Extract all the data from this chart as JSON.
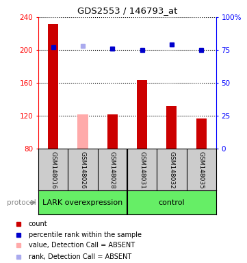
{
  "title": "GDS2553 / 146793_at",
  "samples": [
    "GSM148016",
    "GSM148026",
    "GSM148028",
    "GSM148031",
    "GSM148032",
    "GSM148035"
  ],
  "bar_values": [
    232,
    122,
    122,
    163,
    132,
    117
  ],
  "bar_colors": [
    "#cc0000",
    "#ffaaaa",
    "#cc0000",
    "#cc0000",
    "#cc0000",
    "#cc0000"
  ],
  "rank_values": [
    77,
    78,
    76,
    75,
    79,
    75
  ],
  "rank_colors": [
    "#0000cc",
    "#aaaaee",
    "#0000cc",
    "#0000cc",
    "#0000cc",
    "#0000cc"
  ],
  "ylim_left": [
    80,
    240
  ],
  "ylim_right": [
    0,
    100
  ],
  "yticks_left": [
    80,
    120,
    160,
    200,
    240
  ],
  "yticks_right": [
    0,
    25,
    50,
    75,
    100
  ],
  "ytick_right_labels": [
    "0",
    "25",
    "50",
    "75",
    "100%"
  ],
  "group_labels": [
    "LARK overexpression",
    "control"
  ],
  "group_split": 3,
  "protocol_label": "protocol",
  "bar_width": 0.35,
  "background_color": "#ffffff",
  "sample_bg": "#cccccc",
  "green_color": "#66ee66",
  "legend_items": [
    {
      "color": "#cc0000",
      "label": "count"
    },
    {
      "color": "#0000cc",
      "label": "percentile rank within the sample"
    },
    {
      "color": "#ffaaaa",
      "label": "value, Detection Call = ABSENT"
    },
    {
      "color": "#aaaaee",
      "label": "rank, Detection Call = ABSENT"
    }
  ]
}
